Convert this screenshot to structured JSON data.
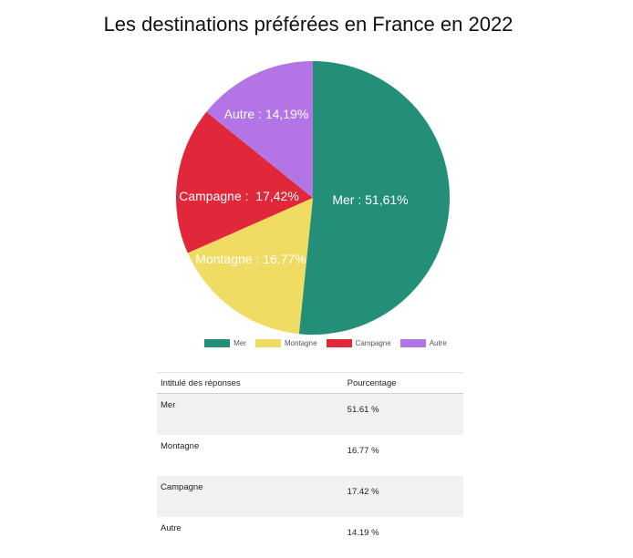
{
  "chart_data": {
    "type": "pie",
    "title": "Les destinations préférées en France en 2022",
    "slices": [
      {
        "name": "Mer",
        "value": 51.61,
        "label": "Mer : 51,61%",
        "color": "#248f78"
      },
      {
        "name": "Montagne",
        "value": 16.77,
        "label": "Montagne : 16,77%",
        "color": "#f0dc62"
      },
      {
        "name": "Campagne",
        "value": 17.42,
        "label": "Campagne :  17,42%",
        "color": "#e0283a"
      },
      {
        "name": "Autre",
        "value": 14.19,
        "label": "Autre : 14,19%",
        "color": "#b374e6"
      }
    ],
    "legend_position": "bottom"
  },
  "table": {
    "headers": [
      "Intitulé des réponses",
      "Pourcentage"
    ],
    "rows": [
      {
        "label": "Mer",
        "value": "51.61 %"
      },
      {
        "label": "Montagne",
        "value": "16.77 %"
      },
      {
        "label": "Campagne",
        "value": "17.42 %"
      },
      {
        "label": "Autre",
        "value": "14.19 %"
      }
    ]
  }
}
